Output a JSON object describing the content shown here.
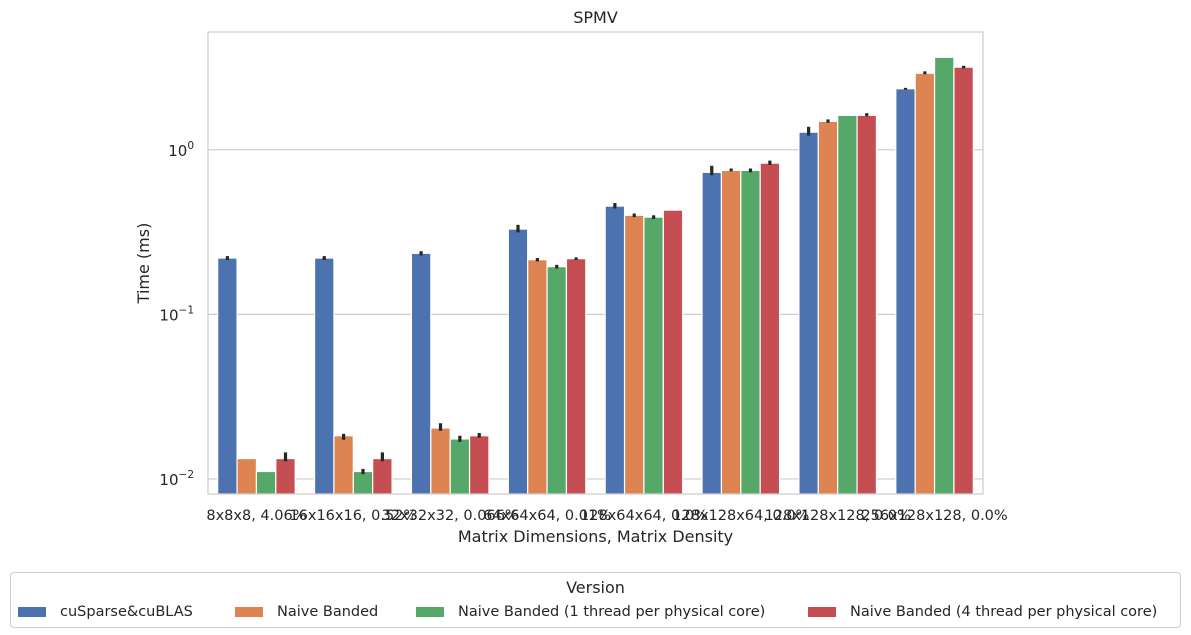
{
  "chart_data": {
    "type": "bar",
    "title": "SPMV",
    "xlabel": "Matrix Dimensions, Matrix Density",
    "ylabel": "Time (ms)",
    "yscale": "log",
    "ylim": [
      0.0081,
      5.2
    ],
    "yticks": [
      {
        "value": 1,
        "base": "10",
        "exp": "0"
      },
      {
        "value": 0.1,
        "base": "10",
        "exp": "−1"
      },
      {
        "value": 0.01,
        "base": "10",
        "exp": "−2"
      }
    ],
    "grid": "horizontal",
    "categories": [
      "8x8x8, 4.06%",
      "16x16x16, 0.52%",
      "32x32x32, 0.066%",
      "64x64x64, 0.01%",
      "128x64x64, 0.0%",
      "128x128x64, 0.0%",
      "128x128x128, 0.0%",
      "256x128x128, 0.0%"
    ],
    "series": [
      {
        "name": "cuSparse&cuBLAS",
        "color": "#4c72b0",
        "values": [
          0.22,
          0.22,
          0.235,
          0.33,
          0.455,
          0.73,
          1.28,
          2.35
        ],
        "err": [
          [
            0.214,
            0.226
          ],
          [
            0.214,
            0.226
          ],
          [
            0.228,
            0.242
          ],
          [
            0.315,
            0.35
          ],
          [
            0.44,
            0.475
          ],
          [
            0.7,
            0.8
          ],
          [
            1.22,
            1.38
          ],
          [
            2.32,
            2.38
          ]
        ]
      },
      {
        "name": "Naive Banded",
        "color": "#dd8452",
        "values": [
          0.0133,
          0.0183,
          0.0204,
          0.215,
          0.4,
          0.75,
          1.49,
          2.92
        ],
        "err": [
          [
            0.0133,
            0.0133
          ],
          [
            0.0173,
            0.0188
          ],
          [
            0.0196,
            0.0218
          ],
          [
            0.21,
            0.22
          ],
          [
            0.39,
            0.41
          ],
          [
            0.74,
            0.77
          ],
          [
            1.46,
            1.53
          ],
          [
            2.88,
            3.0
          ]
        ]
      },
      {
        "name": "Naive Banded (1 thread per physical core)",
        "color": "#55a868",
        "values": [
          0.0111,
          0.0111,
          0.0175,
          0.195,
          0.39,
          0.75,
          1.62,
          3.65
        ],
        "err": [
          [
            0.0111,
            0.0111
          ],
          [
            0.0107,
            0.0115
          ],
          [
            0.0168,
            0.0183
          ],
          [
            0.19,
            0.2
          ],
          [
            0.38,
            0.4
          ],
          [
            0.73,
            0.77
          ],
          [
            1.62,
            1.62
          ],
          [
            3.65,
            3.65
          ]
        ]
      },
      {
        "name": "Naive Banded (4 thread per physical core)",
        "color": "#c44e52",
        "values": [
          0.0133,
          0.0133,
          0.0183,
          0.218,
          0.43,
          0.83,
          1.62,
          3.18
        ],
        "err": [
          [
            0.0128,
            0.0145
          ],
          [
            0.0128,
            0.0145
          ],
          [
            0.0178,
            0.019
          ],
          [
            0.214,
            0.222
          ],
          [
            0.43,
            0.43
          ],
          [
            0.81,
            0.86
          ],
          [
            1.6,
            1.67
          ],
          [
            3.12,
            3.24
          ]
        ]
      }
    ]
  },
  "legend": {
    "title": "Version",
    "placement": "bottom-center"
  }
}
